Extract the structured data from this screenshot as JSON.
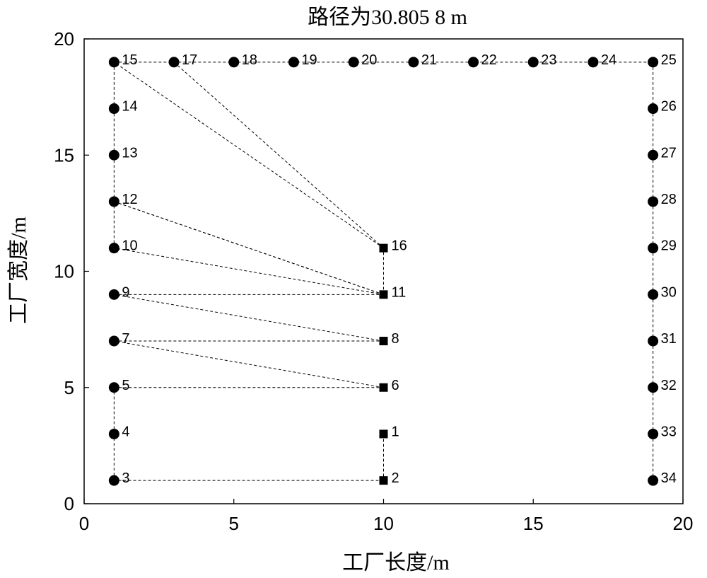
{
  "chart_data": {
    "type": "scatter",
    "title": "路径为30.805 8 m",
    "xlabel": "工厂长度/m",
    "ylabel": "工厂宽度/m",
    "xlim": [
      0,
      20
    ],
    "ylim": [
      0,
      20
    ],
    "xticks": [
      0,
      5,
      10,
      15,
      20
    ],
    "yticks": [
      0,
      5,
      10,
      15,
      20
    ],
    "points": [
      {
        "id": "1",
        "x": 10,
        "y": 3,
        "marker": "square"
      },
      {
        "id": "2",
        "x": 10,
        "y": 1,
        "marker": "square"
      },
      {
        "id": "3",
        "x": 1,
        "y": 1,
        "marker": "circle"
      },
      {
        "id": "4",
        "x": 1,
        "y": 3,
        "marker": "circle"
      },
      {
        "id": "5",
        "x": 1,
        "y": 5,
        "marker": "circle"
      },
      {
        "id": "6",
        "x": 10,
        "y": 5,
        "marker": "square"
      },
      {
        "id": "7",
        "x": 1,
        "y": 7,
        "marker": "circle"
      },
      {
        "id": "8",
        "x": 10,
        "y": 7,
        "marker": "square"
      },
      {
        "id": "9",
        "x": 1,
        "y": 9,
        "marker": "circle"
      },
      {
        "id": "10",
        "x": 1,
        "y": 11,
        "marker": "circle"
      },
      {
        "id": "11",
        "x": 10,
        "y": 9,
        "marker": "square"
      },
      {
        "id": "12",
        "x": 1,
        "y": 13,
        "marker": "circle"
      },
      {
        "id": "13",
        "x": 1,
        "y": 15,
        "marker": "circle"
      },
      {
        "id": "14",
        "x": 1,
        "y": 17,
        "marker": "circle"
      },
      {
        "id": "15",
        "x": 1,
        "y": 19,
        "marker": "circle"
      },
      {
        "id": "16",
        "x": 10,
        "y": 11,
        "marker": "square"
      },
      {
        "id": "17",
        "x": 3,
        "y": 19,
        "marker": "circle"
      },
      {
        "id": "18",
        "x": 5,
        "y": 19,
        "marker": "circle"
      },
      {
        "id": "19",
        "x": 7,
        "y": 19,
        "marker": "circle"
      },
      {
        "id": "20",
        "x": 9,
        "y": 19,
        "marker": "circle"
      },
      {
        "id": "21",
        "x": 11,
        "y": 19,
        "marker": "circle"
      },
      {
        "id": "22",
        "x": 13,
        "y": 19,
        "marker": "circle"
      },
      {
        "id": "23",
        "x": 15,
        "y": 19,
        "marker": "circle"
      },
      {
        "id": "24",
        "x": 17,
        "y": 19,
        "marker": "circle"
      },
      {
        "id": "25",
        "x": 19,
        "y": 19,
        "marker": "circle"
      },
      {
        "id": "26",
        "x": 19,
        "y": 17,
        "marker": "circle"
      },
      {
        "id": "27",
        "x": 19,
        "y": 15,
        "marker": "circle"
      },
      {
        "id": "28",
        "x": 19,
        "y": 13,
        "marker": "circle"
      },
      {
        "id": "29",
        "x": 19,
        "y": 11,
        "marker": "circle"
      },
      {
        "id": "30",
        "x": 19,
        "y": 9,
        "marker": "circle"
      },
      {
        "id": "31",
        "x": 19,
        "y": 7,
        "marker": "circle"
      },
      {
        "id": "32",
        "x": 19,
        "y": 5,
        "marker": "circle"
      },
      {
        "id": "33",
        "x": 19,
        "y": 3,
        "marker": "circle"
      },
      {
        "id": "34",
        "x": 19,
        "y": 1,
        "marker": "circle"
      }
    ],
    "path_order": [
      "1",
      "2",
      "3",
      "4",
      "5",
      "6",
      "7",
      "8",
      "9",
      "11",
      "10",
      "12",
      "16",
      "15",
      "14",
      "13"
    ],
    "path_edges": [
      [
        "1",
        "2"
      ],
      [
        "2",
        "3"
      ],
      [
        "3",
        "4"
      ],
      [
        "4",
        "5"
      ],
      [
        "5",
        "6"
      ],
      [
        "6",
        "7"
      ],
      [
        "7",
        "8"
      ],
      [
        "8",
        "9"
      ],
      [
        "9",
        "11"
      ],
      [
        "11",
        "10"
      ],
      [
        "10",
        "12"
      ],
      [
        "12",
        "11"
      ],
      [
        "11",
        "16"
      ],
      [
        "16",
        "15"
      ],
      [
        "15",
        "14"
      ],
      [
        "14",
        "13"
      ],
      [
        "13",
        "12"
      ],
      [
        "12",
        "11"
      ],
      [
        "15",
        "25"
      ],
      [
        "25",
        "26"
      ],
      [
        "26",
        "27"
      ],
      [
        "27",
        "28"
      ],
      [
        "28",
        "29"
      ],
      [
        "29",
        "30"
      ],
      [
        "30",
        "31"
      ],
      [
        "31",
        "32"
      ],
      [
        "32",
        "33"
      ],
      [
        "33",
        "34"
      ],
      [
        "16",
        "17"
      ]
    ]
  }
}
